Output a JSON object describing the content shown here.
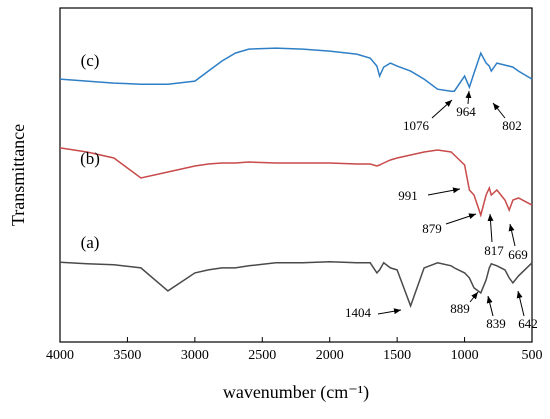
{
  "chart_data": {
    "type": "line",
    "xlabel": "wavenumber (cm⁻¹)",
    "ylabel": "Transmittance",
    "x": [
      4000,
      3800,
      3600,
      3400,
      3200,
      3000,
      2900,
      2800,
      2700,
      2600,
      2400,
      2200,
      2000,
      1800,
      1700,
      1650,
      1630,
      1600,
      1550,
      1500,
      1400,
      1300,
      1200,
      1100,
      1076,
      1000,
      964,
      930,
      880,
      840,
      817,
      802,
      760,
      700,
      669,
      642,
      600,
      500
    ],
    "xlim": [
      4000,
      500
    ],
    "xticks": [
      4000,
      3500,
      3000,
      2500,
      2000,
      1500,
      1000,
      500
    ],
    "ylim": [
      0,
      100
    ],
    "yticks": [],
    "series": [
      {
        "name": "(c)",
        "color": "#2f7fc6",
        "values": [
          78.7,
          78.1,
          77.5,
          77.2,
          77.2,
          78.1,
          81.1,
          84.1,
          86.5,
          87.7,
          88.0,
          87.7,
          87.1,
          86.2,
          85.0,
          82.6,
          79.6,
          82.3,
          83.5,
          82.6,
          81.1,
          78.7,
          75.7,
          75.1,
          75.1,
          79.6,
          76.3,
          80.5,
          86.5,
          83.5,
          82.6,
          81.1,
          83.5,
          82.9,
          82.6,
          82.3,
          81.1,
          78.7
        ]
      },
      {
        "name": "(b)",
        "color": "#c84a4a",
        "values": [
          58.1,
          56.9,
          55.1,
          49.1,
          50.9,
          52.7,
          53.3,
          53.6,
          53.6,
          53.9,
          53.6,
          53.6,
          53.6,
          53.3,
          53.3,
          52.7,
          53.0,
          53.6,
          54.5,
          55.1,
          56.0,
          56.9,
          57.5,
          56.9,
          56.0,
          53.0,
          45.5,
          44.0,
          38.0,
          44.0,
          46.1,
          44.0,
          45.5,
          42.5,
          39.5,
          42.5,
          43.1,
          41.0
        ]
      },
      {
        "name": "(a)",
        "color": "#4a4a4a",
        "values": [
          23.9,
          23.4,
          23.1,
          22.2,
          15.3,
          20.7,
          21.6,
          22.2,
          22.2,
          22.8,
          23.7,
          23.7,
          24.0,
          23.7,
          23.7,
          20.7,
          21.6,
          23.7,
          22.2,
          21.6,
          10.8,
          22.2,
          23.7,
          22.8,
          22.2,
          20.7,
          19.2,
          16.2,
          14.7,
          18.6,
          22.2,
          23.4,
          22.8,
          21.6,
          19.2,
          17.7,
          19.8,
          23.7
        ]
      }
    ],
    "annotations": [
      {
        "text": 1076
      },
      {
        "text": 964
      },
      {
        "text": 802
      },
      {
        "text": 991
      },
      {
        "text": 879
      },
      {
        "text": 817
      },
      {
        "text": 669
      },
      {
        "text": 1404
      },
      {
        "text": 889
      },
      {
        "text": 839
      },
      {
        "text": 642
      }
    ]
  }
}
